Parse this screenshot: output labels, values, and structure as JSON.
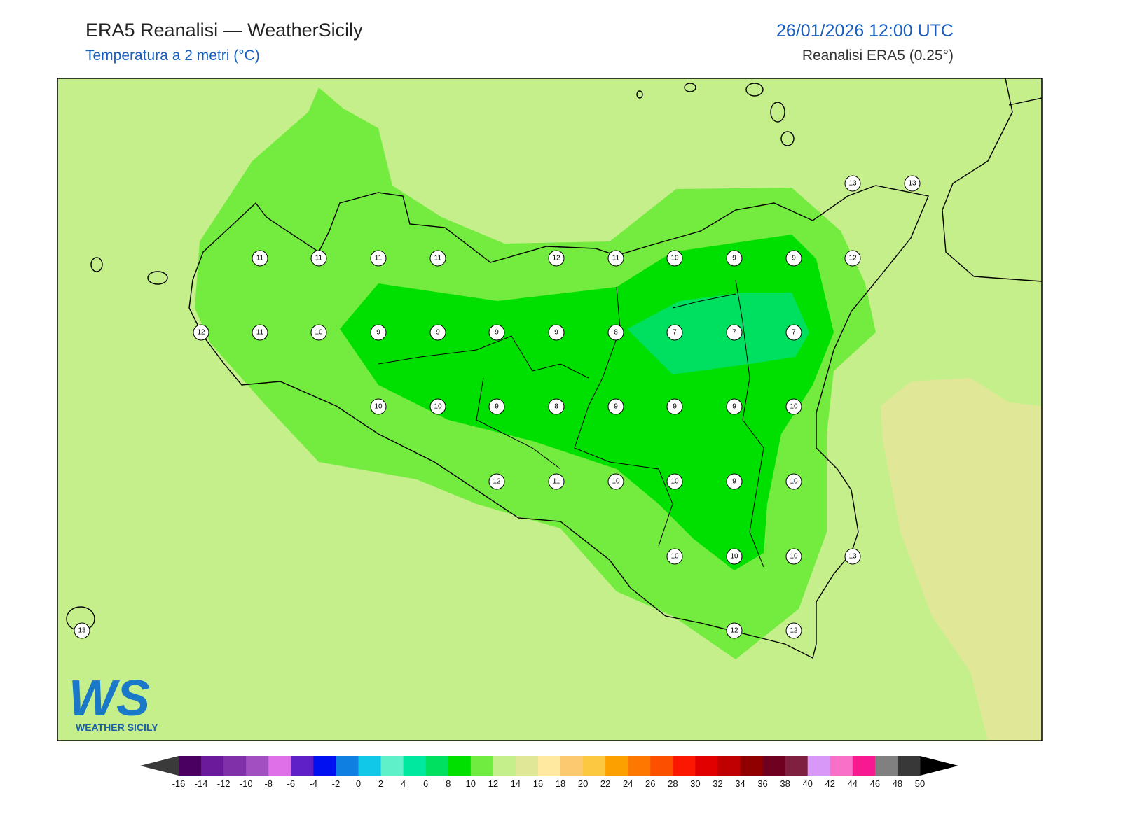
{
  "header": {
    "title": "ERA5 Reanalisi — WeatherSicily",
    "subtitle": "Temperatura a 2 metri (°C)",
    "datetime": "26/01/2026 12:00 UTC",
    "source": "Reanalisi ERA5 (0.25°)"
  },
  "map": {
    "stations": [
      13,
      13,
      11,
      11,
      11,
      11,
      12,
      11,
      10,
      9,
      9,
      12,
      12,
      11,
      10,
      9,
      9,
      9,
      9,
      8,
      7,
      7,
      7,
      10,
      10,
      9,
      8,
      9,
      9,
      9,
      10,
      12,
      11,
      10,
      10,
      9,
      10,
      10,
      10,
      10,
      13,
      13,
      12,
      12
    ]
  },
  "logo": {
    "mark": "WS",
    "name": "WEATHER SICILY"
  },
  "colorbar": {
    "ticks": [
      -16,
      -14,
      -12,
      -10,
      -8,
      -6,
      -4,
      -2,
      0,
      2,
      4,
      6,
      8,
      10,
      12,
      14,
      16,
      18,
      20,
      22,
      24,
      26,
      28,
      30,
      32,
      34,
      36,
      38,
      40,
      42,
      44,
      46,
      48,
      50
    ],
    "colors": [
      "#4a0060",
      "#6a1a9a",
      "#8030a8",
      "#a050c0",
      "#e070e8",
      "#6020c8",
      "#0010f0",
      "#1080e0",
      "#10c8e8",
      "#60f0c8",
      "#00e8a0",
      "#00e060",
      "#00e000",
      "#70ec40",
      "#c5ef8a",
      "#e0e898",
      "#ffe8a0",
      "#fcc870",
      "#fcc840",
      "#fca000",
      "#fc7800",
      "#fc5000",
      "#fc1800",
      "#e00000",
      "#c00000",
      "#900000",
      "#700020",
      "#802040",
      "#d898f8",
      "#f870c8",
      "#f81890",
      "#808080",
      "#383838"
    ],
    "under_color": "#3a3a3a",
    "over_color": "#000000"
  }
}
